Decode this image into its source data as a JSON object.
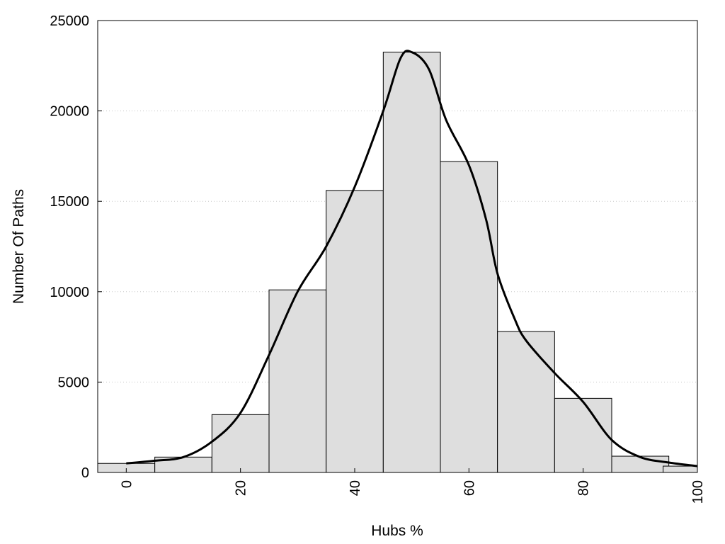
{
  "chart_data": {
    "type": "bar",
    "title": "",
    "xlabel": "Hubs %",
    "ylabel": "Number Of Paths",
    "xlim": [
      -5,
      100
    ],
    "ylim": [
      0,
      25000
    ],
    "x_ticks": [
      0,
      20,
      40,
      60,
      80,
      100
    ],
    "y_ticks": [
      0,
      5000,
      10000,
      15000,
      20000,
      25000
    ],
    "grid": "horizontal dotted",
    "legend": "none",
    "bin_width": 10,
    "bins": [
      {
        "center": 0,
        "value": 500
      },
      {
        "center": 10,
        "value": 850
      },
      {
        "center": 20,
        "value": 3200
      },
      {
        "center": 30,
        "value": 10100
      },
      {
        "center": 40,
        "value": 15600
      },
      {
        "center": 50,
        "value": 23250
      },
      {
        "center": 60,
        "value": 17200
      },
      {
        "center": 70,
        "value": 7800
      },
      {
        "center": 80,
        "value": 4100
      },
      {
        "center": 90,
        "value": 900
      },
      {
        "center": 99,
        "value": 350
      }
    ],
    "density_curve": [
      [
        0,
        500
      ],
      [
        5,
        650
      ],
      [
        10,
        850
      ],
      [
        15,
        1700
      ],
      [
        20,
        3300
      ],
      [
        25,
        6500
      ],
      [
        30,
        10000
      ],
      [
        35,
        12500
      ],
      [
        40,
        15800
      ],
      [
        45,
        20000
      ],
      [
        48,
        22900
      ],
      [
        50,
        23250
      ],
      [
        53,
        22300
      ],
      [
        56,
        19500
      ],
      [
        60,
        17000
      ],
      [
        63,
        14000
      ],
      [
        65,
        11000
      ],
      [
        68,
        8500
      ],
      [
        70,
        7300
      ],
      [
        75,
        5500
      ],
      [
        80,
        3900
      ],
      [
        85,
        1800
      ],
      [
        90,
        850
      ],
      [
        95,
        550
      ],
      [
        100,
        350
      ]
    ],
    "colors": {
      "bar_fill": "#dedede",
      "bar_stroke": "#000000",
      "curve": "#000000",
      "grid": "#c8c8c8"
    }
  }
}
